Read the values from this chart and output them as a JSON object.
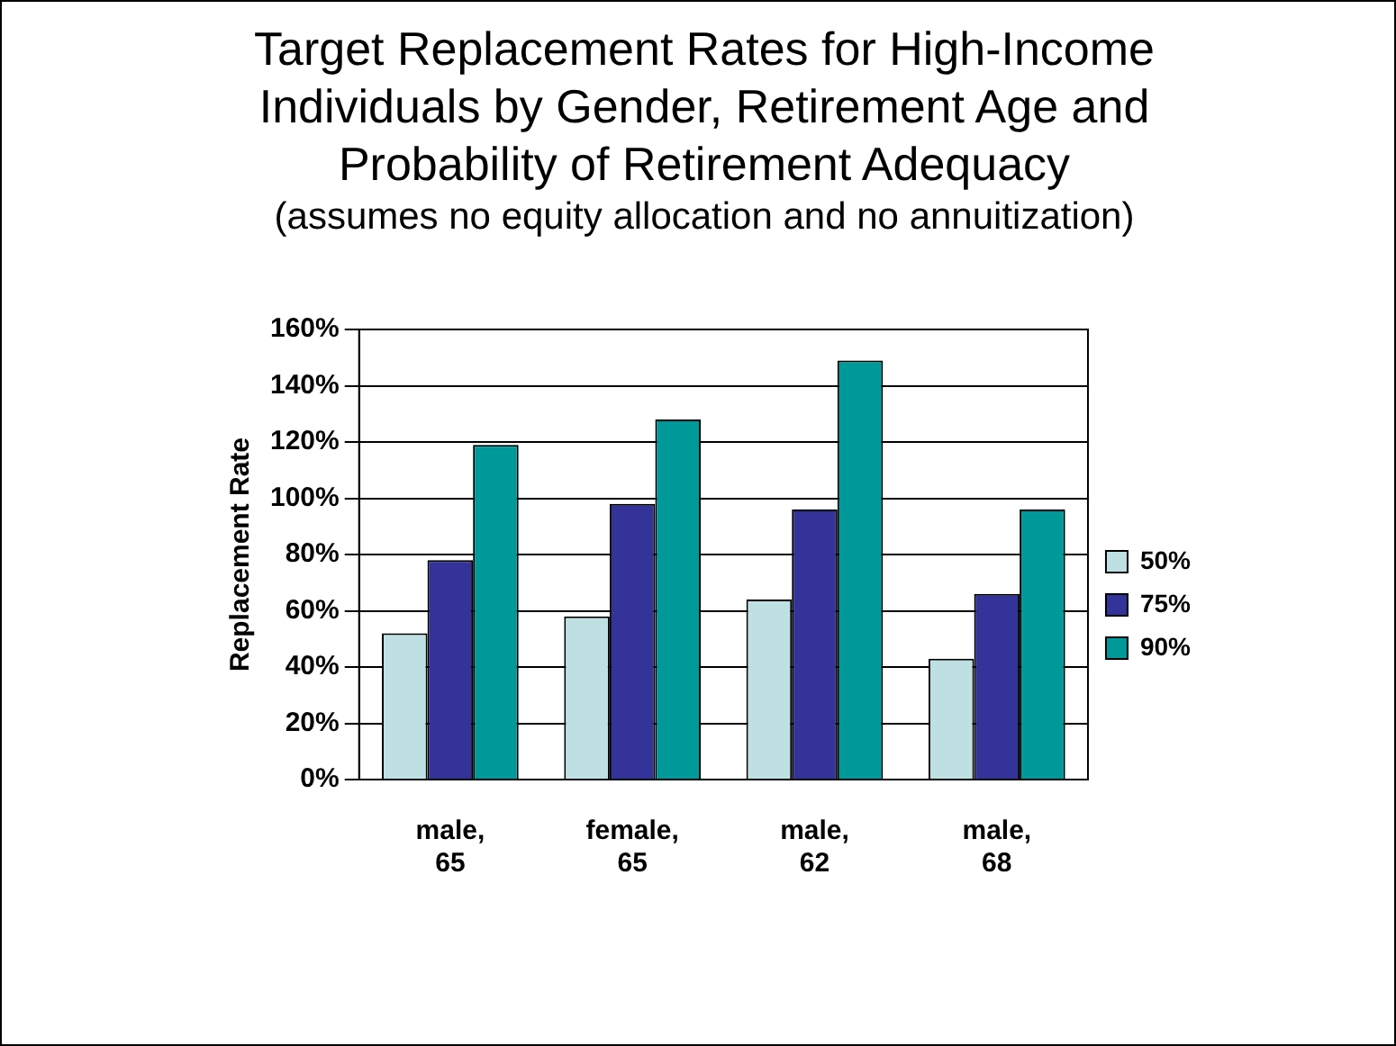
{
  "chart_data": {
    "type": "bar",
    "title": "Target Replacement Rates for High-Income Individuals by Gender, Retirement Age and Probability of Retirement Adequacy",
    "subtitle": "(assumes no equity allocation and no annuitization)",
    "ylabel": "Replacement Rate",
    "categories": [
      "male,\n65",
      "female,\n65",
      "male,\n62",
      "male,\n68"
    ],
    "series": [
      {
        "name": "50%",
        "color": "#bfe0e3",
        "values": [
          52,
          58,
          64,
          43
        ]
      },
      {
        "name": "75%",
        "color": "#333399",
        "values": [
          78,
          98,
          96,
          66
        ]
      },
      {
        "name": "90%",
        "color": "#009999",
        "values": [
          119,
          128,
          149,
          96
        ]
      }
    ],
    "ylim": [
      0,
      160
    ],
    "yticks": [
      {
        "value": 0,
        "label": "0%"
      },
      {
        "value": 20,
        "label": "20%"
      },
      {
        "value": 40,
        "label": "40%"
      },
      {
        "value": 60,
        "label": "60%"
      },
      {
        "value": 80,
        "label": "80%"
      },
      {
        "value": 100,
        "label": "100%"
      },
      {
        "value": 120,
        "label": "120%"
      },
      {
        "value": 140,
        "label": "140%"
      },
      {
        "value": 160,
        "label": "160%"
      }
    ],
    "grid": "y",
    "legend": "right"
  }
}
